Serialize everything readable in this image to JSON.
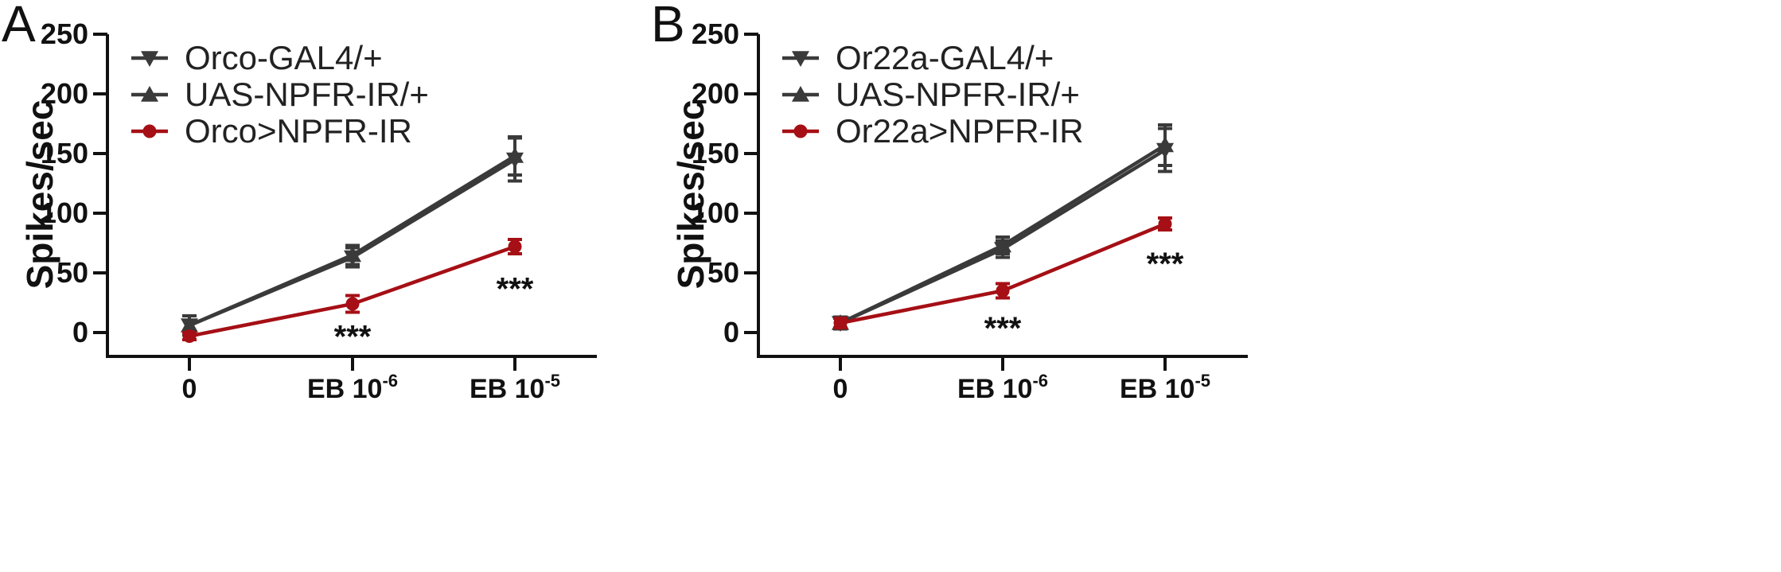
{
  "chart_data": [
    {
      "panel_label": "A",
      "type": "line",
      "ylabel": "Spikes/sec",
      "ylim": [
        0,
        250
      ],
      "yticks": [
        0,
        50,
        100,
        150,
        200,
        250
      ],
      "categories": [
        {
          "text": "0",
          "sup": ""
        },
        {
          "text": "EB 10",
          "sup": "-6"
        },
        {
          "text": "EB 10",
          "sup": "-5"
        }
      ],
      "legend_position": "top-left",
      "series": [
        {
          "name": "Orco-GAL4/+",
          "marker": "triangle-down",
          "color": "#3a3a3a",
          "values": [
            6,
            63,
            145
          ],
          "err": [
            8,
            8,
            18
          ]
        },
        {
          "name": "UAS-NPFR-IR/+",
          "marker": "triangle-up",
          "color": "#3a3a3a",
          "values": [
            6,
            65,
            148
          ],
          "err": [
            8,
            8,
            16
          ]
        },
        {
          "name": "Orco>NPFR-IR",
          "marker": "circle",
          "color": "#a50f15",
          "values": [
            -3,
            24,
            72
          ],
          "err": [
            3,
            7,
            6
          ]
        }
      ],
      "annotations": [
        {
          "text": "***",
          "category_index": 1,
          "y": -3
        },
        {
          "text": "***",
          "category_index": 2,
          "y": 37
        }
      ]
    },
    {
      "panel_label": "B",
      "type": "line",
      "ylabel": "Spikes/sec",
      "ylim": [
        0,
        250
      ],
      "yticks": [
        0,
        50,
        100,
        150,
        200,
        250
      ],
      "categories": [
        {
          "text": "0",
          "sup": ""
        },
        {
          "text": "EB 10",
          "sup": "-6"
        },
        {
          "text": "EB 10",
          "sup": "-5"
        }
      ],
      "legend_position": "top-left",
      "series": [
        {
          "name": "Or22a-GAL4/+",
          "marker": "triangle-down",
          "color": "#3a3a3a",
          "values": [
            8,
            70,
            153
          ],
          "err": [
            5,
            7,
            18
          ]
        },
        {
          "name": "UAS-NPFR-IR/+",
          "marker": "triangle-up",
          "color": "#3a3a3a",
          "values": [
            8,
            73,
            157
          ],
          "err": [
            5,
            7,
            17
          ]
        },
        {
          "name": "Or22a>NPFR-IR",
          "marker": "circle",
          "color": "#a50f15",
          "values": [
            8,
            35,
            91
          ],
          "err": [
            4,
            6,
            5
          ]
        }
      ],
      "annotations": [
        {
          "text": "***",
          "category_index": 1,
          "y": 4
        },
        {
          "text": "***",
          "category_index": 2,
          "y": 58
        }
      ]
    }
  ]
}
